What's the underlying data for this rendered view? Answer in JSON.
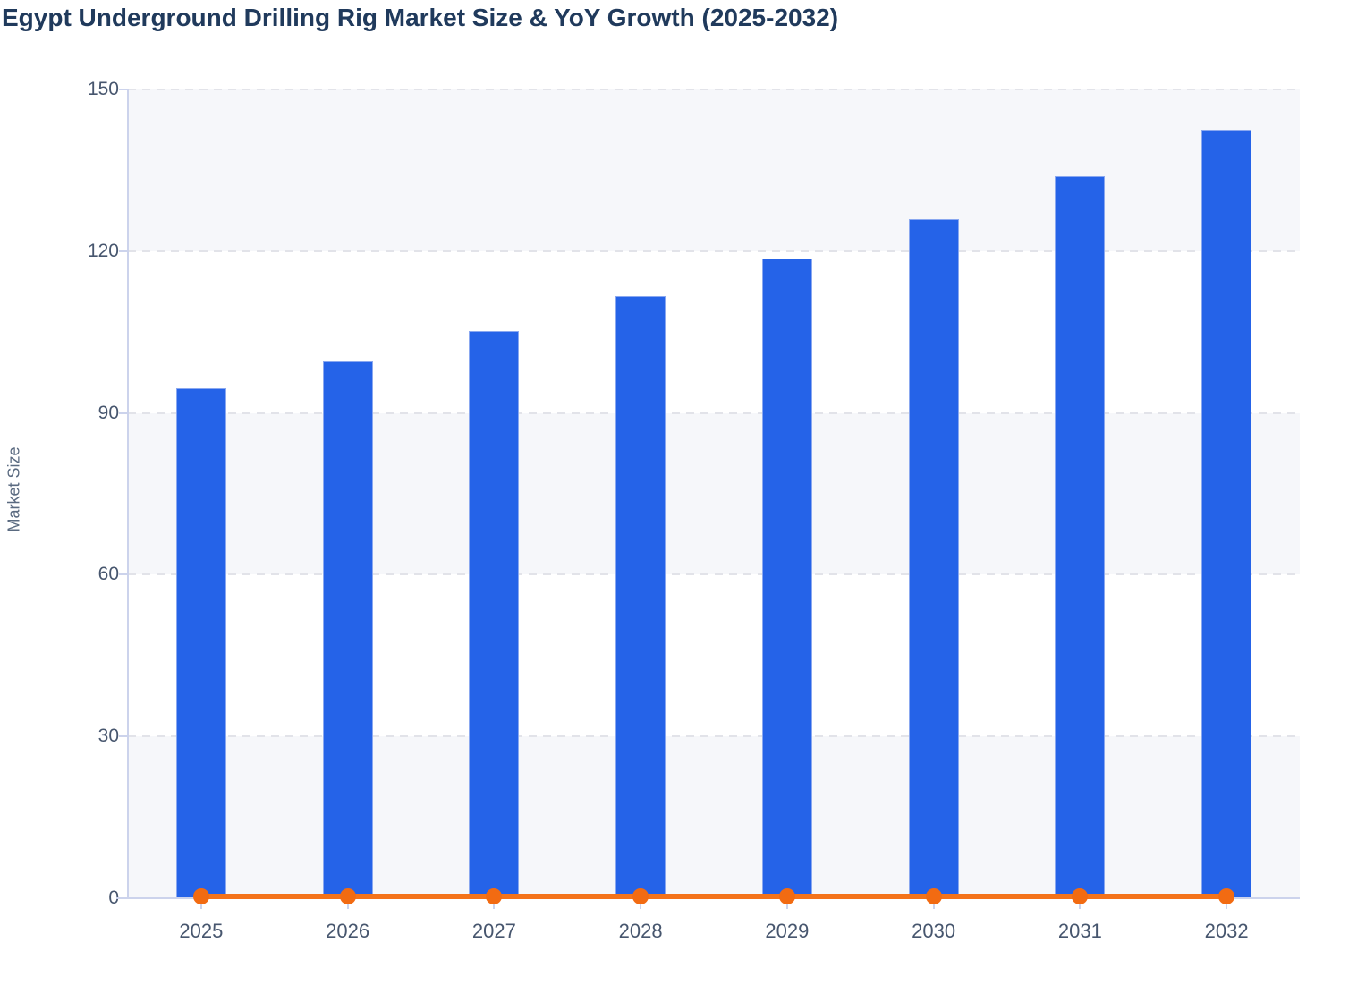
{
  "chart_data": {
    "type": "bar",
    "title": "Egypt Underground Drilling Rig Market Size & YoY Growth (2025-2032)",
    "categories": [
      "2025",
      "2026",
      "2027",
      "2028",
      "2029",
      "2030",
      "2031",
      "2032"
    ],
    "series": [
      {
        "name": "Market Size",
        "type": "bar",
        "color": "#2563e8",
        "values": [
          94.5,
          99.5,
          105.2,
          111.7,
          118.7,
          126.0,
          133.9,
          142.5
        ]
      },
      {
        "name": "YoY Growth",
        "type": "line",
        "color": "#f4731a",
        "values": [
          0,
          0,
          0,
          0,
          0,
          0,
          0,
          0
        ]
      }
    ],
    "xlabel": "",
    "ylabel": "Market Size",
    "ylim": [
      0,
      150
    ],
    "yticks": [
      0,
      30,
      60,
      90,
      120,
      150
    ],
    "grid": "horizontal-dashed",
    "legend_position": "none",
    "plot_band_colors": [
      "#f6f7fa",
      "#ffffff"
    ]
  },
  "colors": {
    "title_text": "#203a5c",
    "bar_fill": "#2563e8",
    "bar_stroke": "#8aa8f0",
    "line_orange": "#f4731a",
    "marker_orange": "#f26b12",
    "axis_line": "#ccd3ec",
    "grid_dash": "#e2e3e9",
    "tick_label_text": "#47566e",
    "band_tint": "#f6f7fa"
  }
}
